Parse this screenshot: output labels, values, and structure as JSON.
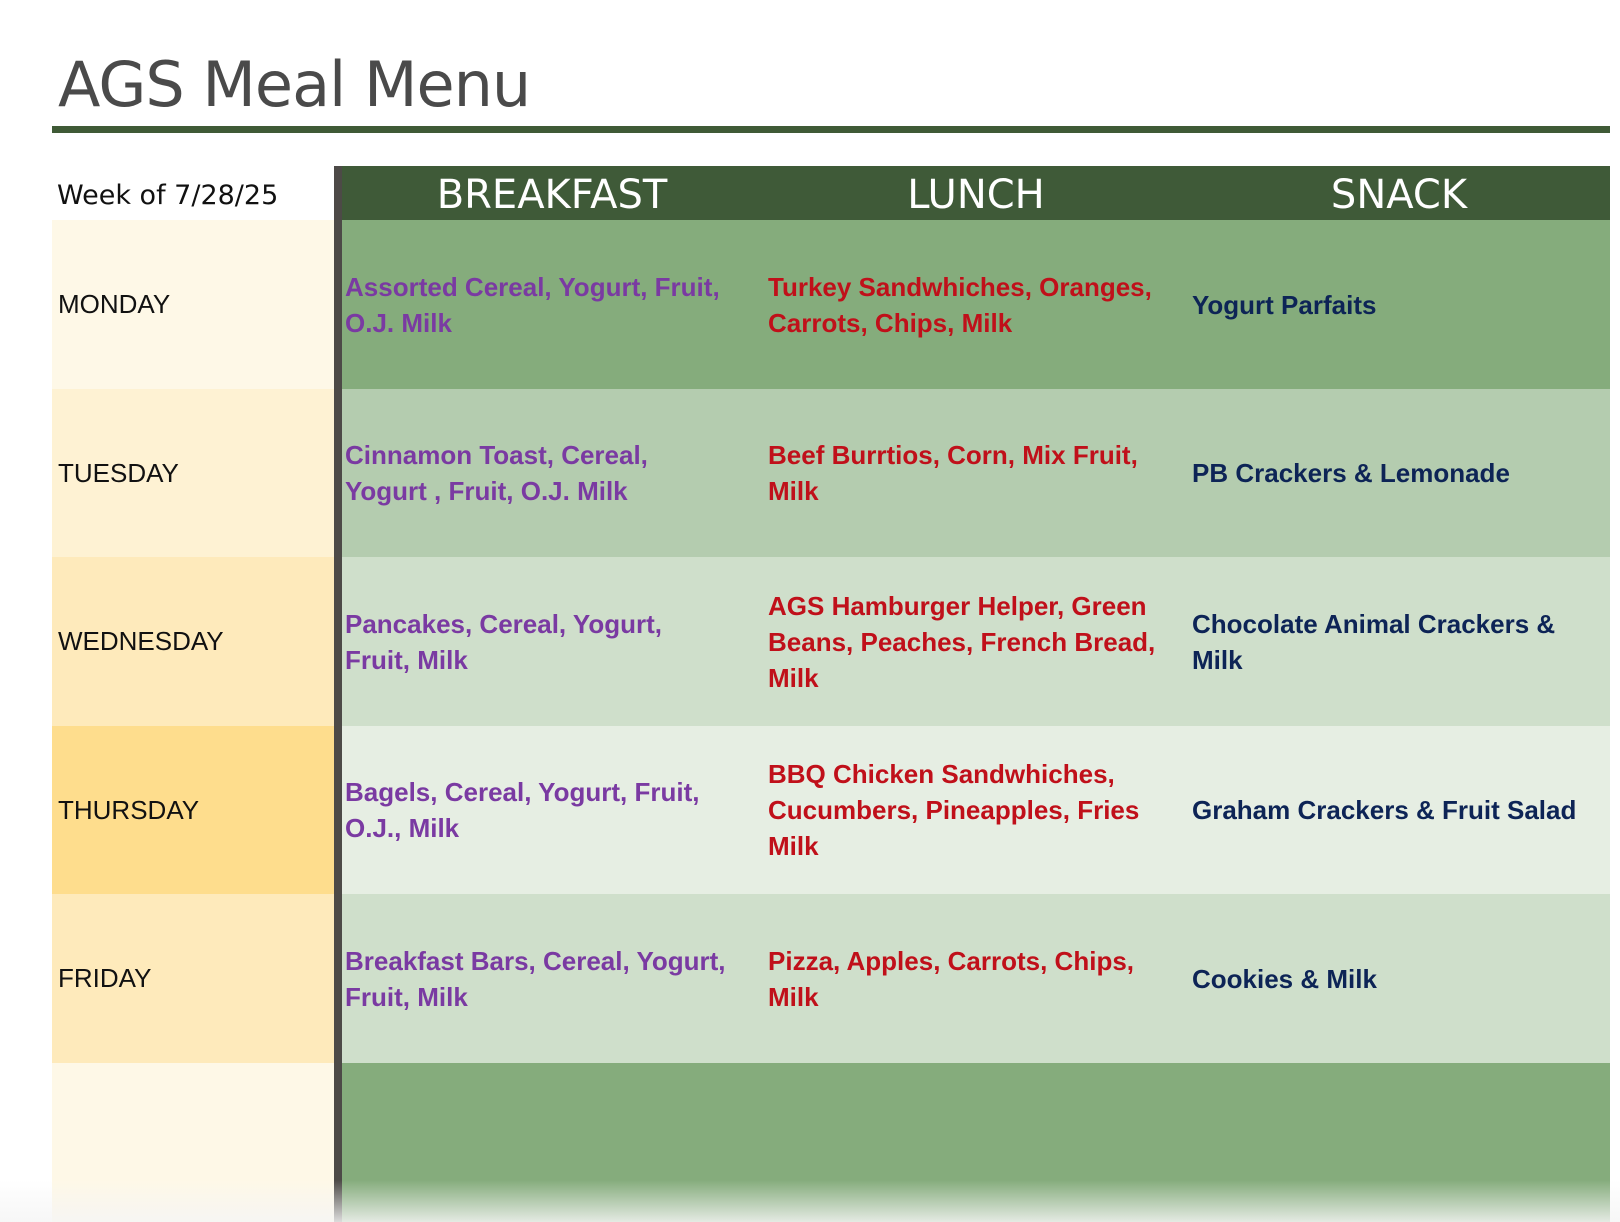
{
  "title": "AGS Meal Menu",
  "week_label": "Week of 7/28/25",
  "columns": {
    "breakfast": "BREAKFAST",
    "lunch": "LUNCH",
    "snack": "SNACK"
  },
  "colors": {
    "header": "#3f5a38",
    "rule": "#3f5a36",
    "breakfast_text": "#7a3aa2",
    "lunch_text": "#c0101a",
    "snack_text": "#0d2456"
  },
  "days": [
    {
      "day": "MONDAY",
      "day_bg": "#fef8e7",
      "row_bg": "#85ac7c",
      "breakfast": [
        "Assorted Cereal, Yogurt, Fruit,",
        "O.J. Milk"
      ],
      "lunch": [
        "Turkey Sandwhiches, Oranges,",
        "Carrots, Chips, Milk"
      ],
      "snack": [
        "Yogurt Parfaits"
      ]
    },
    {
      "day": "TUESDAY",
      "day_bg": "#fef2d3",
      "row_bg": "#b4ccaf",
      "breakfast": [
        "Cinnamon Toast, Cereal,",
        "Yogurt , Fruit, O.J. Milk"
      ],
      "lunch": [
        "Beef Burrtios, Corn, Mix Fruit,",
        "Milk"
      ],
      "snack": [
        "PB Crackers & Lemonade"
      ]
    },
    {
      "day": "WEDNESDAY",
      "day_bg": "#feeabb",
      "row_bg": "#cfdfcb",
      "breakfast": [
        "Pancakes, Cereal, Yogurt,",
        "Fruit, Milk"
      ],
      "lunch": [
        "AGS Hamburger Helper, Green",
        "Beans, Peaches, French Bread,",
        "Milk"
      ],
      "snack": [
        "Chocolate Animal Crackers &",
        "Milk"
      ]
    },
    {
      "day": "THURSDAY",
      "day_bg": "#fedd8d",
      "row_bg": "#e6eee3",
      "breakfast": [
        "Bagels, Cereal, Yogurt, Fruit,",
        "O.J., Milk"
      ],
      "lunch": [
        "BBQ Chicken Sandwhiches,",
        "Cucumbers, Pineapples, Fries",
        "Milk"
      ],
      "snack": [
        "Graham Crackers & Fruit Salad"
      ]
    },
    {
      "day": "FRIDAY",
      "day_bg": "#feeabb",
      "row_bg": "#cfdfcb",
      "breakfast": [
        "Breakfast Bars, Cereal, Yogurt,",
        "Fruit, Milk"
      ],
      "lunch": [
        "Pizza, Apples, Carrots, Chips,",
        "Milk"
      ],
      "snack": [
        "Cookies & Milk"
      ]
    },
    {
      "day": "",
      "day_bg": "#fef8e7",
      "row_bg": "#85ac7c",
      "breakfast": [],
      "lunch": [],
      "snack": []
    }
  ]
}
